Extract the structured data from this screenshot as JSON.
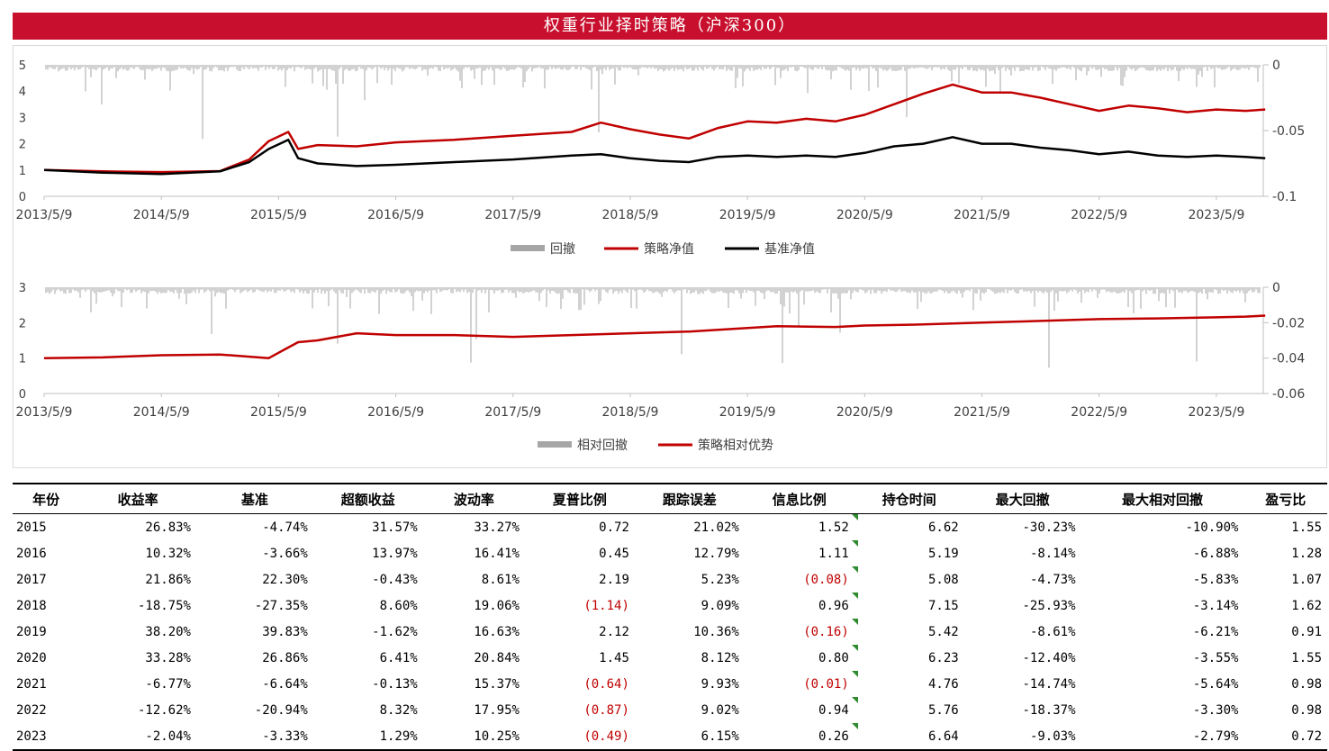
{
  "title": "权重行业择时策略（沪深300）",
  "chart_data": [
    {
      "type": "line",
      "x_ticks": [
        "2013/5/9",
        "2014/5/9",
        "2015/5/9",
        "2016/5/9",
        "2017/5/9",
        "2018/5/9",
        "2019/5/9",
        "2020/5/9",
        "2021/5/9",
        "2022/5/9",
        "2023/5/9"
      ],
      "y_left_ticks": [
        "0",
        "1",
        "2",
        "3",
        "4",
        "5"
      ],
      "y_right_ticks": [
        "0",
        "-0.05",
        "-0.1"
      ],
      "ylim_left": [
        0,
        5
      ],
      "ylim_right": [
        -0.1,
        0
      ],
      "legend": [
        "回撤",
        "策略净值",
        "基准净值"
      ],
      "series": [
        {
          "name": "策略净值",
          "color": "#c00000",
          "x": [
            "2013/5/9",
            "2013/11/9",
            "2014/5/9",
            "2014/11/9",
            "2015/2/9",
            "2015/4/9",
            "2015/6/9",
            "2015/7/9",
            "2015/9/9",
            "2016/1/9",
            "2016/5/9",
            "2016/11/9",
            "2017/5/9",
            "2017/11/9",
            "2018/2/9",
            "2018/5/9",
            "2018/8/9",
            "2018/11/9",
            "2019/2/9",
            "2019/5/9",
            "2019/8/9",
            "2019/11/9",
            "2020/2/9",
            "2020/5/9",
            "2020/8/9",
            "2020/11/9",
            "2021/2/9",
            "2021/5/9",
            "2021/8/9",
            "2021/11/9",
            "2022/2/9",
            "2022/5/9",
            "2022/8/9",
            "2022/11/9",
            "2023/2/9",
            "2023/5/9",
            "2023/8/9",
            "2023/10/9"
          ],
          "values": [
            1.0,
            0.95,
            0.92,
            0.96,
            1.4,
            2.1,
            2.45,
            1.8,
            1.95,
            1.9,
            2.05,
            2.15,
            2.3,
            2.45,
            2.8,
            2.55,
            2.35,
            2.2,
            2.6,
            2.85,
            2.8,
            2.95,
            2.85,
            3.1,
            3.5,
            3.9,
            4.25,
            3.95,
            3.95,
            3.75,
            3.5,
            3.25,
            3.45,
            3.35,
            3.2,
            3.3,
            3.25,
            3.3
          ]
        },
        {
          "name": "基准净值",
          "color": "#000000",
          "x": [
            "2013/5/9",
            "2013/11/9",
            "2014/5/9",
            "2014/11/9",
            "2015/2/9",
            "2015/4/9",
            "2015/6/9",
            "2015/7/9",
            "2015/9/9",
            "2016/1/9",
            "2016/5/9",
            "2016/11/9",
            "2017/5/9",
            "2017/11/9",
            "2018/2/9",
            "2018/5/9",
            "2018/8/9",
            "2018/11/9",
            "2019/2/9",
            "2019/5/9",
            "2019/8/9",
            "2019/11/9",
            "2020/2/9",
            "2020/5/9",
            "2020/8/9",
            "2020/11/9",
            "2021/2/9",
            "2021/5/9",
            "2021/8/9",
            "2021/11/9",
            "2022/2/9",
            "2022/5/9",
            "2022/8/9",
            "2022/11/9",
            "2023/2/9",
            "2023/5/9",
            "2023/8/9",
            "2023/10/9"
          ],
          "values": [
            1.0,
            0.9,
            0.85,
            0.95,
            1.3,
            1.8,
            2.15,
            1.45,
            1.25,
            1.15,
            1.2,
            1.3,
            1.4,
            1.55,
            1.6,
            1.45,
            1.35,
            1.3,
            1.5,
            1.55,
            1.5,
            1.55,
            1.5,
            1.65,
            1.9,
            2.0,
            2.25,
            2.0,
            2.0,
            1.85,
            1.75,
            1.6,
            1.7,
            1.55,
            1.5,
            1.55,
            1.5,
            1.45
          ]
        }
      ]
    },
    {
      "type": "line",
      "x_ticks": [
        "2013/5/9",
        "2014/5/9",
        "2015/5/9",
        "2016/5/9",
        "2017/5/9",
        "2018/5/9",
        "2019/5/9",
        "2020/5/9",
        "2021/5/9",
        "2022/5/9",
        "2023/5/9"
      ],
      "y_left_ticks": [
        "0",
        "1",
        "2",
        "3"
      ],
      "y_right_ticks": [
        "0",
        "-0.02",
        "-0.04",
        "-0.06"
      ],
      "ylim_left": [
        0,
        3
      ],
      "ylim_right": [
        -0.06,
        0
      ],
      "legend": [
        "相对回撤",
        "策略相对优势"
      ],
      "series": [
        {
          "name": "策略相对优势",
          "color": "#c00000",
          "x": [
            "2013/5/9",
            "2013/11/9",
            "2014/5/9",
            "2014/11/9",
            "2015/4/9",
            "2015/6/9",
            "2015/7/9",
            "2015/9/9",
            "2016/1/9",
            "2016/5/9",
            "2016/11/9",
            "2017/5/9",
            "2017/11/9",
            "2018/5/9",
            "2018/11/9",
            "2019/5/9",
            "2019/8/9",
            "2020/2/9",
            "2020/5/9",
            "2020/11/9",
            "2021/5/9",
            "2021/11/9",
            "2022/5/9",
            "2022/11/9",
            "2023/5/9",
            "2023/8/9",
            "2023/10/9"
          ],
          "values": [
            1.0,
            1.02,
            1.08,
            1.1,
            1.0,
            1.3,
            1.45,
            1.5,
            1.7,
            1.65,
            1.65,
            1.6,
            1.65,
            1.7,
            1.75,
            1.85,
            1.9,
            1.88,
            1.92,
            1.95,
            2.0,
            2.05,
            2.1,
            2.12,
            2.15,
            2.17,
            2.2
          ]
        }
      ]
    }
  ],
  "table": {
    "headers": [
      "年份",
      "收益率",
      "基准",
      "超额收益",
      "波动率",
      "夏普比例",
      "跟踪误差",
      "信息比例",
      "持仓时间",
      "最大回撤",
      "最大相对回撤",
      "盈亏比"
    ],
    "rows": [
      [
        "2015",
        "26.83%",
        "-4.74%",
        "31.57%",
        "33.27%",
        "0.72",
        "21.02%",
        "1.52",
        "6.62",
        "-30.23%",
        "-10.90%",
        "1.55"
      ],
      [
        "2016",
        "10.32%",
        "-3.66%",
        "13.97%",
        "16.41%",
        "0.45",
        "12.79%",
        "1.11",
        "5.19",
        "-8.14%",
        "-6.88%",
        "1.28"
      ],
      [
        "2017",
        "21.86%",
        "22.30%",
        "-0.43%",
        "8.61%",
        "2.19",
        "5.23%",
        "(0.08)",
        "5.08",
        "-4.73%",
        "-5.83%",
        "1.07"
      ],
      [
        "2018",
        "-18.75%",
        "-27.35%",
        "8.60%",
        "19.06%",
        "(1.14)",
        "9.09%",
        "0.96",
        "7.15",
        "-25.93%",
        "-3.14%",
        "1.62"
      ],
      [
        "2019",
        "38.20%",
        "39.83%",
        "-1.62%",
        "16.63%",
        "2.12",
        "10.36%",
        "(0.16)",
        "5.42",
        "-8.61%",
        "-6.21%",
        "0.91"
      ],
      [
        "2020",
        "33.28%",
        "26.86%",
        "6.41%",
        "20.84%",
        "1.45",
        "8.12%",
        "0.80",
        "6.23",
        "-12.40%",
        "-3.55%",
        "1.55"
      ],
      [
        "2021",
        "-6.77%",
        "-6.64%",
        "-0.13%",
        "15.37%",
        "(0.64)",
        "9.93%",
        "(0.01)",
        "4.76",
        "-14.74%",
        "-5.64%",
        "0.98"
      ],
      [
        "2022",
        "-12.62%",
        "-20.94%",
        "8.32%",
        "17.95%",
        "(0.87)",
        "9.02%",
        "0.94",
        "5.76",
        "-18.37%",
        "-3.30%",
        "0.98"
      ],
      [
        "2023",
        "-2.04%",
        "-3.33%",
        "1.29%",
        "10.25%",
        "(0.49)",
        "6.15%",
        "0.26",
        "6.64",
        "-9.03%",
        "-2.79%",
        "0.72"
      ]
    ]
  },
  "colors": {
    "accent": "#c8102e",
    "strategy": "#c00000",
    "benchmark": "#000000",
    "drawdown": "#a6a6a6",
    "negative_text": "#c00000"
  }
}
